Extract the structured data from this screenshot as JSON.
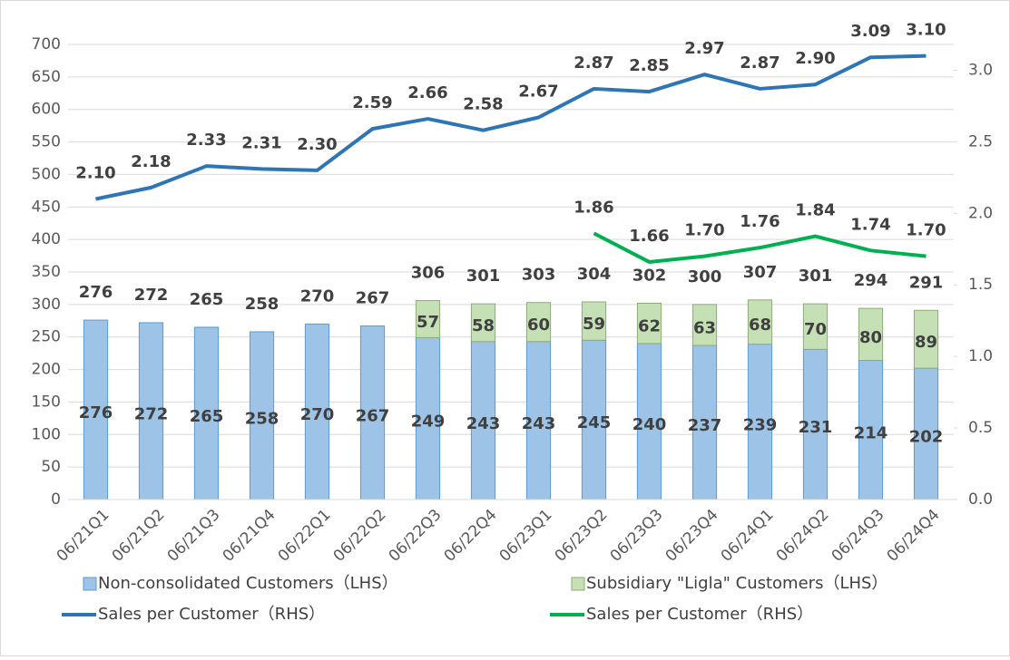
{
  "chart_data": {
    "type": "bar-line",
    "categories": [
      "06/21Q1",
      "06/21Q2",
      "06/21Q3",
      "06/21Q4",
      "06/22Q1",
      "06/22Q2",
      "06/22Q3",
      "06/22Q4",
      "06/23Q1",
      "06/23Q2",
      "06/23Q3",
      "06/23Q4",
      "06/24Q1",
      "06/24Q2",
      "06/24Q3",
      "06/24Q4"
    ],
    "series": [
      {
        "name": "Non-consolidated Customers（LHS）",
        "kind": "bar",
        "color": "#9dc3e6",
        "values": [
          276,
          272,
          265,
          258,
          270,
          267,
          249,
          243,
          243,
          245,
          240,
          237,
          239,
          231,
          214,
          202
        ]
      },
      {
        "name": "Subsidiary \"Ligla\" Customers（LHS）",
        "kind": "bar",
        "color": "#c5e0b4",
        "values": [
          null,
          null,
          null,
          null,
          null,
          null,
          57,
          58,
          60,
          59,
          62,
          63,
          68,
          70,
          80,
          89
        ]
      },
      {
        "name": "Sales per Customer（RHS）",
        "kind": "line",
        "axis": "y2",
        "color": "#2e75b6",
        "values": [
          2.1,
          2.18,
          2.33,
          2.31,
          2.3,
          2.59,
          2.66,
          2.58,
          2.67,
          2.87,
          2.85,
          2.97,
          2.87,
          2.9,
          3.09,
          3.1
        ],
        "value_labels": [
          "2.10",
          "2.18",
          "2.33",
          "2.31",
          "2.30",
          "2.59",
          "2.66",
          "2.58",
          "2.67",
          "2.87",
          "2.85",
          "2.97",
          "2.87",
          "2.90",
          "3.09",
          "3.10"
        ]
      },
      {
        "name": "Sales per Customer（RHS）",
        "kind": "line",
        "axis": "y2",
        "color": "#00b050",
        "values": [
          null,
          null,
          null,
          null,
          null,
          null,
          null,
          null,
          null,
          1.86,
          1.66,
          1.7,
          1.76,
          1.84,
          1.74,
          1.7
        ],
        "value_labels": [
          null,
          null,
          null,
          null,
          null,
          null,
          null,
          null,
          null,
          "1.86",
          "1.66",
          "1.70",
          "1.76",
          "1.84",
          "1.74",
          "1.70"
        ]
      }
    ],
    "total_labels": [
      276,
      272,
      265,
      258,
      270,
      267,
      306,
      301,
      303,
      304,
      302,
      300,
      307,
      301,
      294,
      291
    ],
    "ylim": [
      0,
      700
    ],
    "yticks": [
      0,
      50,
      100,
      150,
      200,
      250,
      300,
      350,
      400,
      450,
      500,
      550,
      600,
      650,
      700
    ],
    "y2lim": [
      0,
      3.18
    ],
    "y2ticks": [
      {
        "value": 0,
        "label": "0.0"
      },
      {
        "value": 0.5,
        "label": "0.5"
      },
      {
        "value": 1,
        "label": "1.0"
      },
      {
        "value": 1.5,
        "label": "1.5"
      },
      {
        "value": 2,
        "label": "2.0"
      },
      {
        "value": 2.5,
        "label": "2.5"
      },
      {
        "value": 3,
        "label": "3.0"
      }
    ],
    "grid": true
  }
}
